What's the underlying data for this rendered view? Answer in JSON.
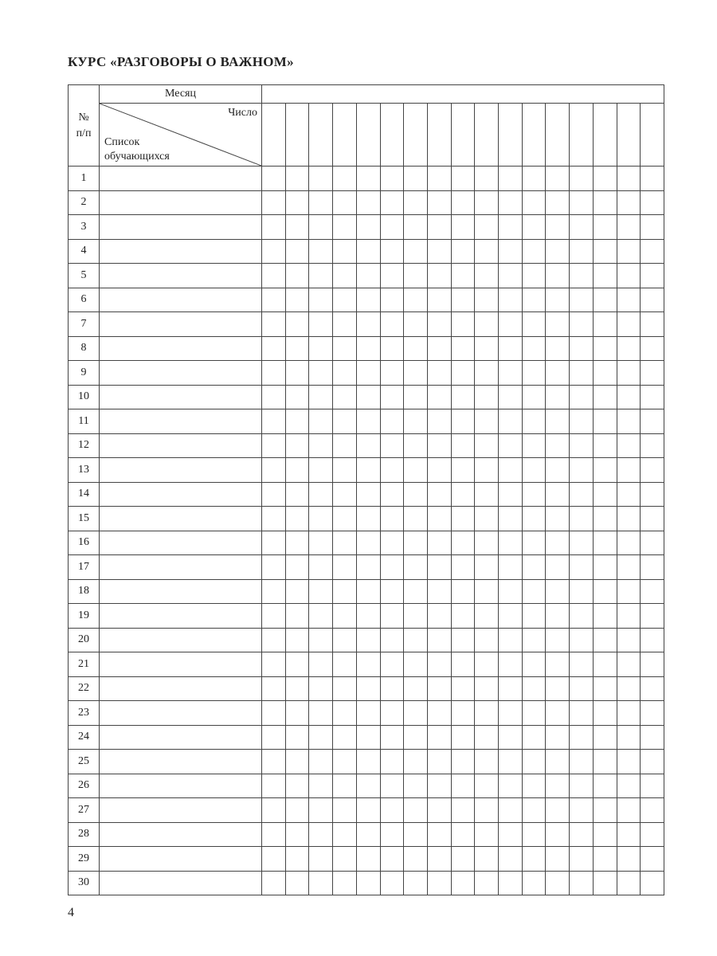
{
  "title": "КУРС «РАЗГОВОРЫ  О  ВАЖНОМ»",
  "header": {
    "num_line1": "№",
    "num_line2": "п/п",
    "month": "Месяц",
    "number": "Число",
    "list_line1": "Список",
    "list_line2": "обучающихся"
  },
  "day_columns": 17,
  "rows": [
    "1",
    "2",
    "3",
    "4",
    "5",
    "6",
    "7",
    "8",
    "9",
    "10",
    "11",
    "12",
    "13",
    "14",
    "15",
    "16",
    "17",
    "18",
    "19",
    "20",
    "21",
    "22",
    "23",
    "24",
    "25",
    "26",
    "27",
    "28",
    "29",
    "30"
  ],
  "page_number": "4"
}
